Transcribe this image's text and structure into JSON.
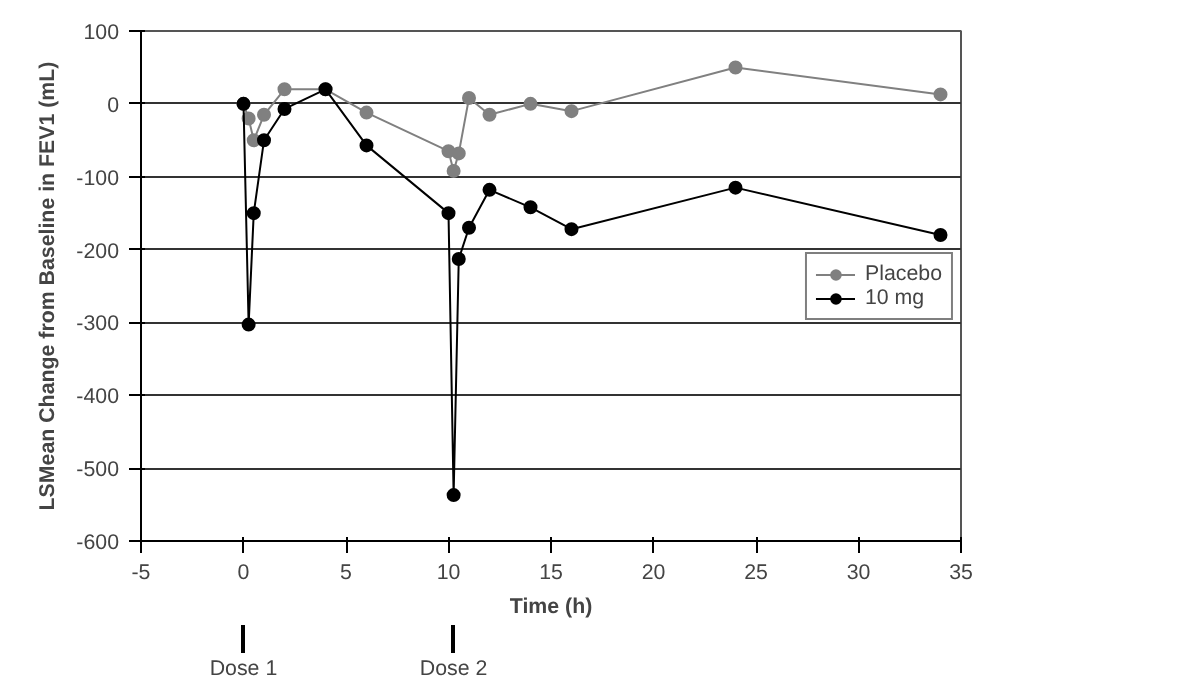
{
  "chart_data": {
    "type": "line",
    "xlabel": "Time (h)",
    "ylabel": "LSMean Change from Baseline in FEV1 (mL)",
    "xlim": [
      -5,
      35
    ],
    "xticks": [
      -5,
      0,
      5,
      10,
      15,
      20,
      25,
      30,
      35
    ],
    "ylim": [
      -600,
      100
    ],
    "yticks": [
      -600,
      -500,
      -400,
      -300,
      -200,
      -100,
      0,
      100
    ],
    "grid": "y",
    "legend": "right",
    "marker": "circle",
    "line_style": "solid",
    "annotations": [
      {
        "text": "Dose 1",
        "x": 0
      },
      {
        "text": "Dose 2",
        "x": 10.25
      }
    ],
    "series": [
      {
        "name": "Placebo",
        "color": "#808080",
        "x": [
          0,
          0.25,
          0.5,
          1,
          2,
          4,
          6,
          10,
          10.25,
          10.5,
          11,
          12,
          14,
          16,
          24,
          34
        ],
        "values": [
          0,
          -20,
          -50,
          -15,
          20,
          20,
          -12,
          -65,
          -92,
          -68,
          8,
          -15,
          0,
          -10,
          50,
          13
        ]
      },
      {
        "name": "10 mg",
        "color": "#000000",
        "x": [
          0,
          0.25,
          0.5,
          1,
          2,
          4,
          6,
          10,
          10.25,
          10.5,
          11,
          12,
          14,
          16,
          24,
          34
        ],
        "values": [
          0,
          -303,
          -150,
          -50,
          -7,
          20,
          -57,
          -150,
          -537,
          -213,
          -170,
          -118,
          -142,
          -172,
          -115,
          -180
        ]
      }
    ]
  }
}
